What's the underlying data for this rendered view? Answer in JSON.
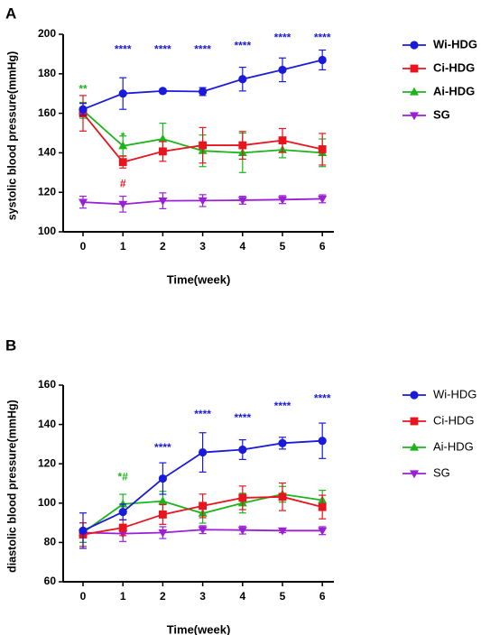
{
  "colors": {
    "Wi-HDG": "#1a1adb",
    "Ci-HDG": "#e8141e",
    "Ai-HDG": "#1bb51b",
    "SG": "#9b1fd6"
  },
  "chart_data": [
    {
      "panel_label": "A",
      "type": "line",
      "xlabel": "Time(week)",
      "ylabel": "systolic blood pressure(mmHg)",
      "x": [
        0,
        1,
        2,
        3,
        4,
        5,
        6
      ],
      "ylim": [
        100,
        200
      ],
      "yticks": [
        100,
        120,
        140,
        160,
        180,
        200
      ],
      "grid": false,
      "legend_position": "right",
      "legend_bold": true,
      "series": [
        {
          "name": "Wi-HDG",
          "marker": "circle",
          "values": [
            162,
            170,
            171.3,
            171,
            177.3,
            182,
            187
          ],
          "err": [
            3,
            8,
            1,
            2,
            6,
            6,
            5
          ]
        },
        {
          "name": "Ci-HDG",
          "marker": "square",
          "values": [
            160,
            135.3,
            140.7,
            143.8,
            143.8,
            146.3,
            141.8
          ],
          "err": [
            9,
            3,
            5,
            9,
            7,
            6,
            8
          ]
        },
        {
          "name": "Ai-HDG",
          "marker": "triangle-up",
          "values": [
            161.5,
            143.5,
            147,
            141,
            140,
            141.5,
            140
          ],
          "err": [
            4,
            5,
            8,
            8,
            10,
            4,
            7
          ]
        },
        {
          "name": "SG",
          "marker": "triangle-down",
          "values": [
            115,
            114,
            115.7,
            115.8,
            116,
            116.3,
            116.7
          ],
          "err": [
            3,
            4,
            4,
            3,
            2,
            2,
            2
          ]
        }
      ],
      "annotations": [
        {
          "x": 0,
          "y": 172,
          "text": "**",
          "color": "#1bb51b"
        },
        {
          "x": 1,
          "y": 148,
          "text": "*",
          "color": "#1bb51b"
        },
        {
          "x": 1,
          "y": 124,
          "text": "#",
          "color": "#e8141e"
        },
        {
          "x": 1,
          "y": 192,
          "text": "****",
          "color": "#1a1adb"
        },
        {
          "x": 2,
          "y": 192,
          "text": "****",
          "color": "#1a1adb"
        },
        {
          "x": 3,
          "y": 192,
          "text": "****",
          "color": "#1a1adb"
        },
        {
          "x": 4,
          "y": 194,
          "text": "****",
          "color": "#1a1adb"
        },
        {
          "x": 5,
          "y": 198,
          "text": "****",
          "color": "#1a1adb"
        },
        {
          "x": 6,
          "y": 198,
          "text": "****",
          "color": "#1a1adb"
        }
      ]
    },
    {
      "panel_label": "B",
      "type": "line",
      "xlabel": "Time(week)",
      "ylabel": "diastolic blood pressure(mmHg)",
      "x": [
        0,
        1,
        2,
        3,
        4,
        5,
        6
      ],
      "ylim": [
        60,
        160
      ],
      "yticks": [
        60,
        80,
        100,
        120,
        140,
        160
      ],
      "grid": false,
      "legend_position": "right",
      "legend_bold": false,
      "series": [
        {
          "name": "Wi-HDG",
          "marker": "circle",
          "values": [
            86,
            95.5,
            112.5,
            125.8,
            127.2,
            130.5,
            131.7
          ],
          "err": [
            9,
            4,
            8,
            10,
            5,
            3,
            9
          ]
        },
        {
          "name": "Ci-HDG",
          "marker": "square",
          "values": [
            84,
            87.5,
            94.2,
            98.6,
            102.7,
            103.2,
            98
          ],
          "err": [
            6,
            4,
            5,
            6,
            6,
            7,
            6
          ]
        },
        {
          "name": "Ai-HDG",
          "marker": "triangle-up",
          "values": [
            85,
            99.5,
            101,
            94.8,
            100,
            104.5,
            101.5
          ],
          "err": [
            5,
            5,
            5,
            5,
            5,
            4,
            5
          ]
        },
        {
          "name": "SG",
          "marker": "triangle-down",
          "values": [
            85,
            84.5,
            85,
            86.5,
            86.3,
            86,
            86
          ],
          "err": [
            5,
            4,
            3,
            2,
            2,
            1,
            2
          ]
        }
      ],
      "annotations": [
        {
          "x": 1,
          "y": 113,
          "text": "*#",
          "color": "#1bb51b"
        },
        {
          "x": 2,
          "y": 128,
          "text": "****",
          "color": "#1a1adb"
        },
        {
          "x": 3,
          "y": 145,
          "text": "****",
          "color": "#1a1adb"
        },
        {
          "x": 4,
          "y": 143,
          "text": "****",
          "color": "#1a1adb"
        },
        {
          "x": 5,
          "y": 149,
          "text": "****",
          "color": "#1a1adb"
        },
        {
          "x": 6,
          "y": 153,
          "text": "****",
          "color": "#1a1adb"
        }
      ]
    }
  ]
}
